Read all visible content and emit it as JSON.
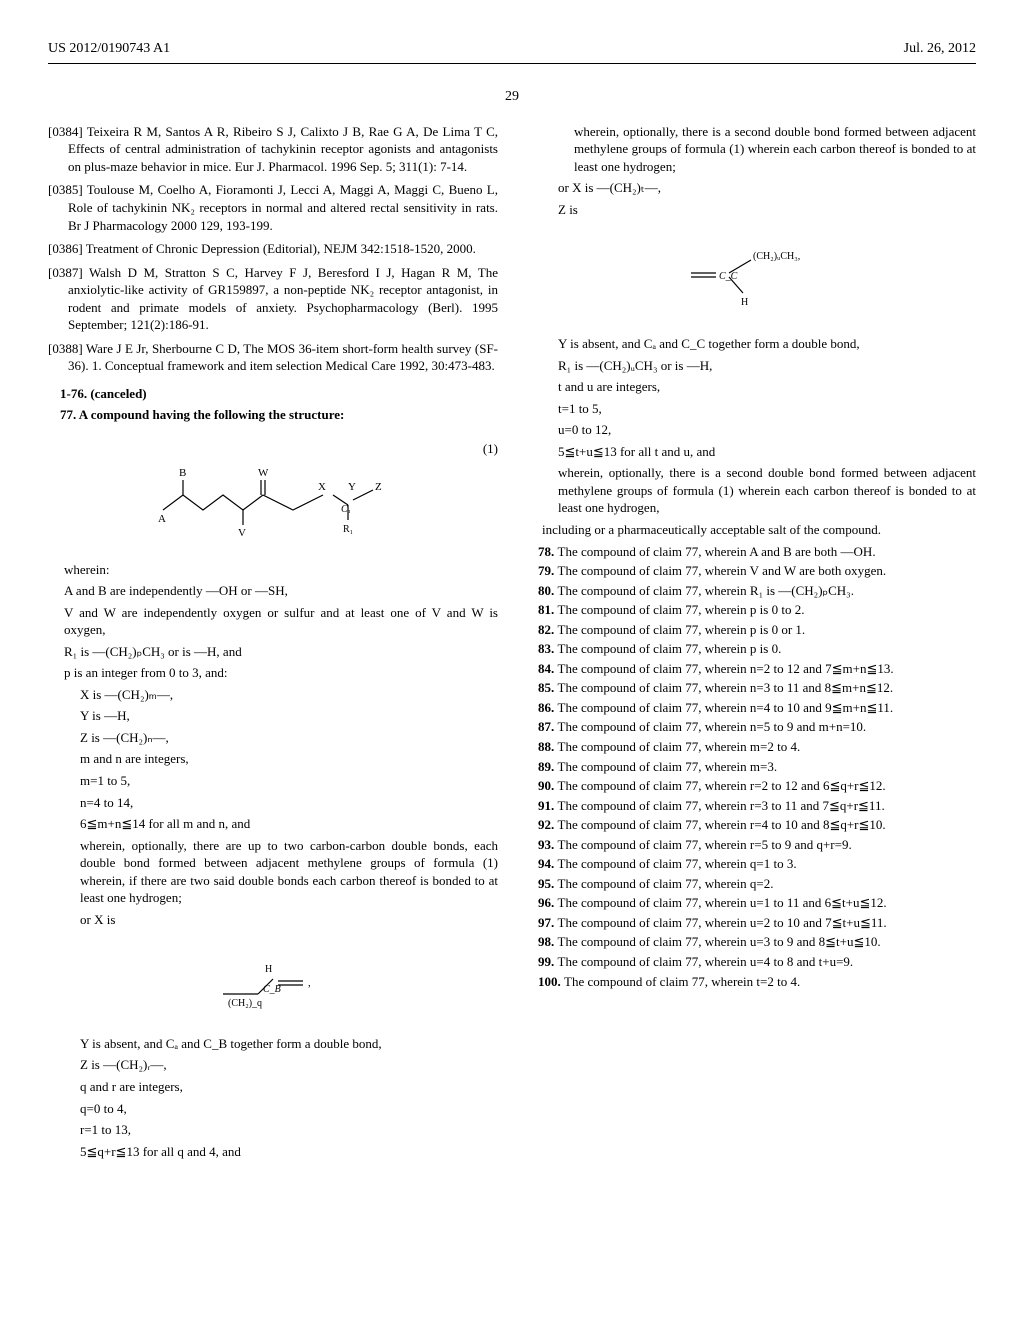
{
  "header": {
    "patent_number": "US 2012/0190743 A1",
    "date": "Jul. 26, 2012"
  },
  "page_number": "29",
  "left_column": {
    "refs": [
      {
        "num": "[0384]",
        "text": "Teixeira R M, Santos A R, Ribeiro S J, Calixto J B, Rae G A, De Lima T C, Effects of central administration of tachykinin receptor agonists and antagonists on plus-maze behavior in mice. Eur J. Pharmacol. 1996 Sep. 5; 311(1): 7-14."
      },
      {
        "num": "[0385]",
        "text": "Toulouse M, Coelho A, Fioramonti J, Lecci A, Maggi A, Maggi C, Bueno L, Role of tachykinin NK₂ receptors in normal and altered rectal sensitivity in rats. Br J Pharmacology 2000 129, 193-199."
      },
      {
        "num": "[0386]",
        "text": "Treatment of Chronic Depression (Editorial), NEJM 342:1518-1520, 2000."
      },
      {
        "num": "[0387]",
        "text": "Walsh D M, Stratton S C, Harvey F J, Beresford I J, Hagan R M, The anxiolytic-like activity of GR159897, a non-peptide NK₂ receptor antagonist, in rodent and primate models of anxiety. Psychopharmacology (Berl). 1995 September; 121(2):186-91."
      },
      {
        "num": "[0388]",
        "text": "Ware J E Jr, Sherbourne C D, The MOS 36-item short-form health survey (SF-36). 1. Conceptual framework and item selection Medical Care 1992, 30:473-483."
      }
    ],
    "cancelled": "1-76. (canceled)",
    "claim77": "77. A compound having the following the structure:",
    "formula1_label": "(1)",
    "wherein_lines": [
      "wherein:",
      "A and B are independently —OH or —SH,",
      "V and W are independently oxygen or sulfur and at least one of V and W is oxygen,",
      "R₁ is —(CH₂)ₚCH₃ or is —H, and",
      "p is an integer from 0 to 3, and:",
      "X is —(CH₂)ₘ—,",
      "Y is —H,",
      "Z is —(CH₂)ₙ—,",
      "m and n are integers,",
      "m=1 to 5,",
      "n=4 to 14,",
      "6≦m+n≦14 for all m and n, and",
      "wherein, optionally, there are up to two carbon-carbon double bonds, each double bond formed between adjacent methylene groups of formula (1) wherein, if there are two said double bonds each carbon thereof is bonded to at least one hydrogen;",
      "or X is"
    ],
    "after_formula2": [
      "Y is absent, and Cₐ and C_B together form a double bond,",
      "Z is —(CH₂)ᵣ—,",
      "q and r are integers,",
      "q=0 to 4,",
      "r=1 to 13,",
      "5≦q+r≦13 for all q and 4, and"
    ]
  },
  "right_column": {
    "top_lines": [
      "wherein, optionally, there is a second double bond formed between adjacent methylene groups of formula (1) wherein each carbon thereof is bonded to at least one hydrogen;",
      "or X is —(CH₂)ₜ—,",
      "Z is"
    ],
    "after_formula3": [
      "Y is absent, and Cₐ and C_C together form a double bond,",
      "R₁ is —(CH₂)ᵤCH₃ or is —H,",
      "t and u are integers,",
      "t=1 to 5,",
      "u=0 to 12,",
      "5≦t+u≦13 for all t and u, and",
      "wherein, optionally, there is a second double bond formed between adjacent methylene groups of formula (1) wherein each carbon thereof is bonded to at least one hydrogen,",
      "including or a pharmaceutically acceptable salt of the compound."
    ],
    "claims": [
      {
        "num": "78",
        "text": "The compound of claim 77, wherein A and B are both —OH."
      },
      {
        "num": "79",
        "text": "The compound of claim 77, wherein V and W are both oxygen."
      },
      {
        "num": "80",
        "text": "The compound of claim 77, wherein R₁ is —(CH₂)ₚCH₃."
      },
      {
        "num": "81",
        "text": "The compound of claim 77, wherein p is 0 to 2."
      },
      {
        "num": "82",
        "text": "The compound of claim 77, wherein p is 0 or 1."
      },
      {
        "num": "83",
        "text": "The compound of claim 77, wherein p is 0."
      },
      {
        "num": "84",
        "text": "The compound of claim 77, wherein n=2 to 12 and 7≦m+n≦13."
      },
      {
        "num": "85",
        "text": "The compound of claim 77, wherein n=3 to 11 and 8≦m+n≦12."
      },
      {
        "num": "86",
        "text": "The compound of claim 77, wherein n=4 to 10 and 9≦m+n≦11."
      },
      {
        "num": "87",
        "text": "The compound of claim 77, wherein n=5 to 9 and m+n=10."
      },
      {
        "num": "88",
        "text": "The compound of claim 77, wherein m=2 to 4."
      },
      {
        "num": "89",
        "text": "The compound of claim 77, wherein m=3."
      },
      {
        "num": "90",
        "text": "The compound of claim 77, wherein r=2 to 12 and 6≦q+r≦12."
      },
      {
        "num": "91",
        "text": "The compound of claim 77, wherein r=3 to 11 and 7≦q+r≦11."
      },
      {
        "num": "92",
        "text": "The compound of claim 77, wherein r=4 to 10 and 8≦q+r≦10."
      },
      {
        "num": "93",
        "text": "The compound of claim 77, wherein r=5 to 9 and q+r=9."
      },
      {
        "num": "94",
        "text": "The compound of claim 77, wherein q=1 to 3."
      },
      {
        "num": "95",
        "text": "The compound of claim 77, wherein q=2."
      },
      {
        "num": "96",
        "text": "The compound of claim 77, wherein u=1 to 11 and 6≦t+u≦12."
      },
      {
        "num": "97",
        "text": "The compound of claim 77, wherein u=2 to 10 and 7≦t+u≦11."
      },
      {
        "num": "98",
        "text": "The compound of claim 77, wherein u=3 to 9 and 8≦t+u≦10."
      },
      {
        "num": "99",
        "text": "The compound of claim 77, wherein u=4 to 8 and t+u=9."
      },
      {
        "num": "100",
        "text": "The compound of claim 77, wherein t=2 to 4."
      }
    ]
  }
}
